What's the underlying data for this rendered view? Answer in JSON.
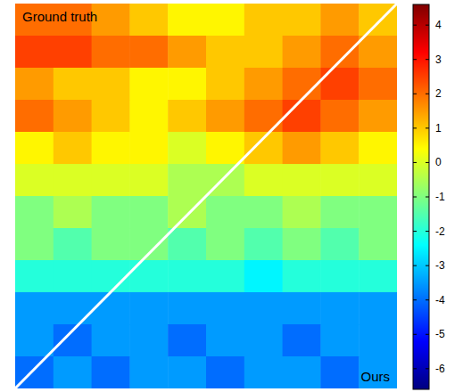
{
  "chart_data": {
    "type": "heatmap",
    "annotations": [
      "Ground truth",
      "Ours"
    ],
    "tick_labels": false,
    "values": [
      [
        2,
        2,
        1.5,
        1,
        0.5,
        0.5,
        1,
        1,
        1.5,
        1
      ],
      [
        2.5,
        2.5,
        2,
        2,
        1.5,
        1,
        1,
        1.5,
        2,
        1.5
      ],
      [
        1.5,
        1,
        1,
        0.5,
        0.5,
        1,
        1.5,
        2,
        2.5,
        2
      ],
      [
        2,
        1.5,
        1,
        0.5,
        1,
        1.5,
        2,
        2.5,
        2,
        1.5
      ],
      [
        0.5,
        1,
        0.5,
        0.5,
        0,
        0.5,
        1,
        1.5,
        1,
        0.5
      ],
      [
        0,
        0,
        0,
        0,
        -0.5,
        -0.5,
        0,
        0,
        0,
        0
      ],
      [
        -1,
        -0.5,
        -1,
        -1,
        -0.5,
        -1,
        -1,
        -0.5,
        -1,
        -1
      ],
      [
        -1,
        -1.5,
        -1,
        -1,
        -1.5,
        -1,
        -1.5,
        -1,
        -1.5,
        -1
      ],
      [
        -2,
        -2,
        -2,
        -2,
        -2,
        -2,
        -2.5,
        -2,
        -2,
        -2
      ],
      [
        -3.5,
        -3.5,
        -3.5,
        -3.5,
        -3.5,
        -3.5,
        -3.5,
        -3.5,
        -3.5,
        -3.5
      ],
      [
        -3.5,
        -4,
        -3.5,
        -3.5,
        -4,
        -3.5,
        -3.5,
        -4,
        -3.5,
        -3.5
      ],
      [
        -4,
        -3.5,
        -4,
        -3.5,
        -3.5,
        -4,
        -3.5,
        -3.5,
        -4,
        -3.5
      ]
    ],
    "colorbar_range": [
      -6.6,
      4.6
    ],
    "colorbar_ticks": [
      4,
      3,
      2,
      1,
      0,
      -1,
      -2,
      -3,
      -4,
      -5,
      -6
    ]
  }
}
